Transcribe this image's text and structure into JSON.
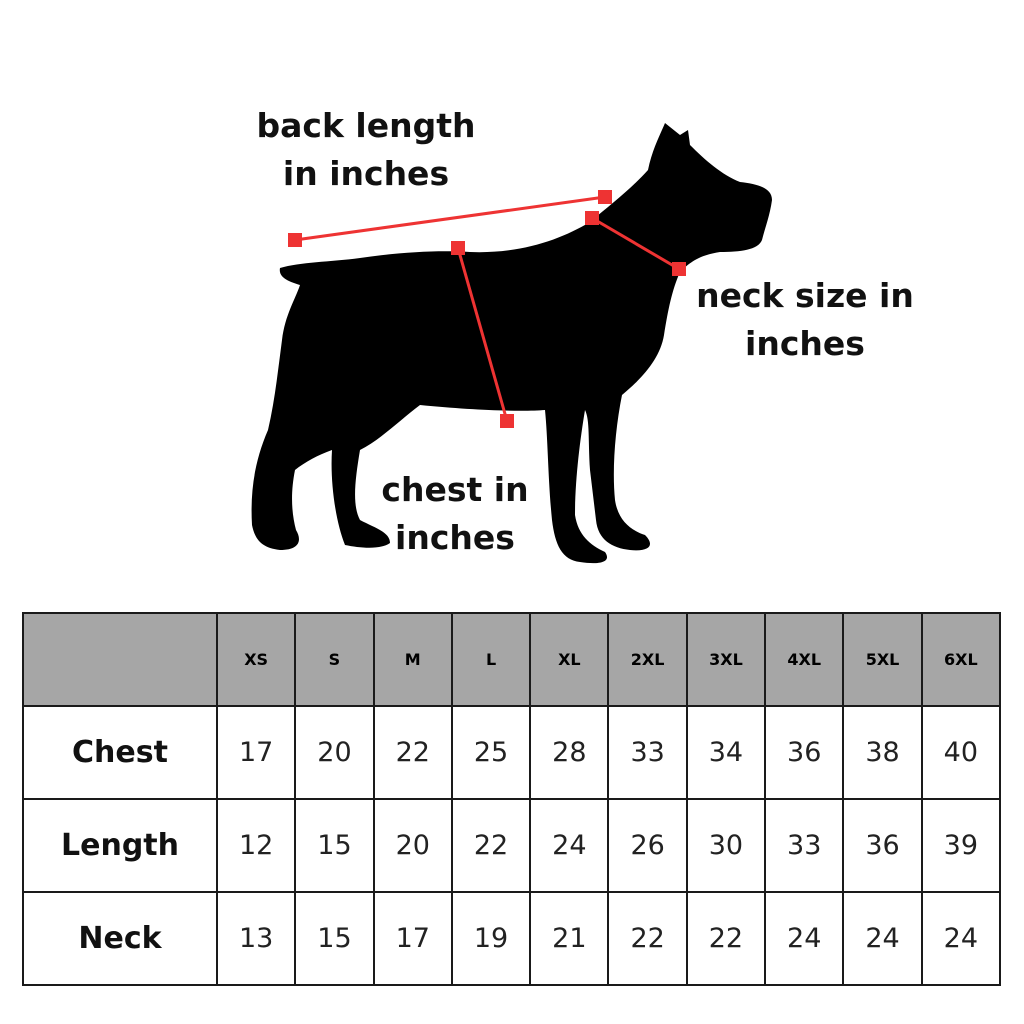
{
  "labels": {
    "back_length": [
      "back length",
      "in inches"
    ],
    "neck_size": [
      "neck size in",
      "inches"
    ],
    "chest": [
      "chest in",
      "inches"
    ]
  },
  "colors": {
    "measure_line": "#ee3333",
    "silhouette": "#000000",
    "header_bg": "#a6a6a6"
  },
  "table": {
    "sizes": [
      "XS",
      "S",
      "M",
      "L",
      "XL",
      "2XL",
      "3XL",
      "4XL",
      "5XL",
      "6XL"
    ],
    "rows": [
      {
        "label": "Chest",
        "values": [
          "17",
          "20",
          "22",
          "25",
          "28",
          "33",
          "34",
          "36",
          "38",
          "40"
        ]
      },
      {
        "label": "Length",
        "values": [
          "12",
          "15",
          "20",
          "22",
          "24",
          "26",
          "30",
          "33",
          "36",
          "39"
        ]
      },
      {
        "label": "Neck",
        "values": [
          "13",
          "15",
          "17",
          "19",
          "21",
          "22",
          "22",
          "24",
          "24",
          "24"
        ]
      }
    ]
  }
}
